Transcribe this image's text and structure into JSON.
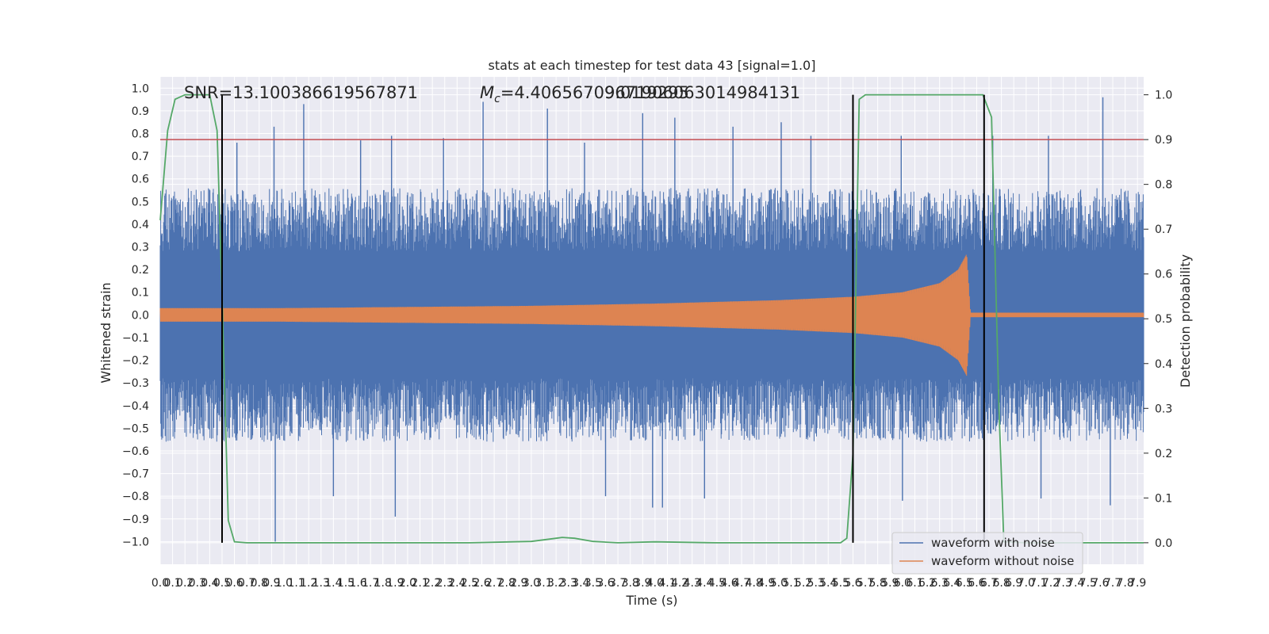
{
  "chart_data": {
    "type": "line",
    "title": "stats at each timestep for test data 43 [signal=1.0]",
    "xlabel": "Time (s)",
    "ylabel": "Whitened strain",
    "y2label": "Detection probability",
    "xlim": [
      0.0,
      7.95
    ],
    "ylim": [
      -1.1,
      1.05
    ],
    "y2lim": [
      -0.048,
      1.04
    ],
    "xticks": [
      0.0,
      0.1,
      0.2,
      0.3,
      0.4,
      0.5,
      0.6,
      0.7,
      0.8,
      0.9,
      1.0,
      1.1,
      1.2,
      1.3,
      1.4,
      1.5,
      1.6,
      1.7,
      1.8,
      1.9,
      2.0,
      2.1,
      2.2,
      2.3,
      2.4,
      2.5,
      2.6,
      2.7,
      2.8,
      2.9,
      3.0,
      3.1,
      3.2,
      3.3,
      3.4,
      3.5,
      3.6,
      3.7,
      3.8,
      3.9,
      4.0,
      4.1,
      4.2,
      4.3,
      4.4,
      4.5,
      4.6,
      4.7,
      4.8,
      4.9,
      5.0,
      5.1,
      5.2,
      5.3,
      5.4,
      5.5,
      5.6,
      5.7,
      5.8,
      5.9,
      6.0,
      6.1,
      6.2,
      6.3,
      6.4,
      6.5,
      6.6,
      6.7,
      6.8,
      6.9,
      7.0,
      7.1,
      7.2,
      7.3,
      7.4,
      7.5,
      7.6,
      7.7,
      7.8,
      7.9
    ],
    "xtick_labels": [
      "0.0",
      "0.1",
      "0.2",
      "0.3",
      "0.4",
      "0.5",
      "0.6",
      "0.7",
      "0.8",
      "0.9",
      "1.0",
      "1.1",
      "1.2",
      "1.3",
      "1.4",
      "1.5",
      "1.6",
      "1.7",
      "1.8",
      "1.9",
      "2.0",
      "2.1",
      "2.2",
      "2.3",
      "2.4",
      "2.5",
      "2.6",
      "2.7",
      "2.8",
      "2.9",
      "3.0",
      "3.1",
      "3.2",
      "3.3",
      "3.4",
      "3.5",
      "3.6",
      "3.7",
      "3.8",
      "3.9",
      "4.0",
      "4.1",
      "4.2",
      "4.3",
      "4.4",
      "4.5",
      "4.6",
      "4.7",
      "4.8",
      "4.9",
      "5.0",
      "5.1",
      "5.2",
      "5.3",
      "5.4",
      "5.5",
      "5.6",
      "5.7",
      "5.8",
      "5.9",
      "6.0",
      "6.1",
      "6.2",
      "6.3",
      "6.4",
      "6.5",
      "6.6",
      "6.7",
      "6.8",
      "6.9",
      "7.0",
      "7.1",
      "7.2",
      "7.3",
      "7.4",
      "7.5",
      "7.6",
      "7.7",
      "7.8",
      "7.9"
    ],
    "yticks": [
      1.0,
      0.9,
      0.8,
      0.7,
      0.6,
      0.5,
      0.4,
      0.3,
      0.2,
      0.1,
      0.0,
      -0.1,
      -0.2,
      -0.3,
      -0.4,
      -0.5,
      -0.6,
      -0.7,
      -0.8,
      -0.9,
      -1.0
    ],
    "ytick_labels": [
      "1.0",
      "0.9",
      "0.8",
      "0.7",
      "0.6",
      "0.5",
      "0.4",
      "0.3",
      "0.2",
      "0.1",
      "0.0",
      "−0.1",
      "−0.2",
      "−0.3",
      "−0.4",
      "−0.5",
      "−0.6",
      "−0.7",
      "−0.8",
      "−0.9",
      "−1.0"
    ],
    "y2ticks": [
      1.0,
      0.9,
      0.8,
      0.7,
      0.6,
      0.5,
      0.4,
      0.3,
      0.2,
      0.1,
      0.0
    ],
    "y2tick_labels": [
      "1.0",
      "0.9",
      "0.8",
      "0.7",
      "0.6",
      "0.5",
      "0.4",
      "0.3",
      "0.2",
      "0.1",
      "0.0"
    ],
    "grid": true,
    "legend_position": "bottom-right",
    "annotations": {
      "snr": "SNR=13.100386619567871",
      "mc_prefix": "M",
      "mc_subscript": "c",
      "mc_value": "=4.406567096719295",
      "third_overlap": "9.01906063014984131"
    },
    "series": [
      {
        "name": "waveform with noise",
        "color": "#4c72b0",
        "axis": "left",
        "envelope_upper": 0.55,
        "envelope_lower": -0.55,
        "spikes": [
          {
            "x": 0.62,
            "y": 0.76
          },
          {
            "x": 0.92,
            "y": 0.83
          },
          {
            "x": 1.16,
            "y": 0.93
          },
          {
            "x": 1.62,
            "y": 0.77
          },
          {
            "x": 1.87,
            "y": 0.79
          },
          {
            "x": 2.29,
            "y": 0.78
          },
          {
            "x": 2.61,
            "y": 0.94
          },
          {
            "x": 3.13,
            "y": 0.91
          },
          {
            "x": 3.43,
            "y": 0.76
          },
          {
            "x": 3.9,
            "y": 0.89
          },
          {
            "x": 4.16,
            "y": 0.87
          },
          {
            "x": 4.63,
            "y": 0.83
          },
          {
            "x": 5.02,
            "y": 0.85
          },
          {
            "x": 5.26,
            "y": 0.79
          },
          {
            "x": 5.99,
            "y": 0.79
          },
          {
            "x": 6.73,
            "y": 0.79
          },
          {
            "x": 7.18,
            "y": 0.79
          },
          {
            "x": 7.62,
            "y": 0.96
          },
          {
            "x": 0.93,
            "y": -1.0
          },
          {
            "x": 1.4,
            "y": -0.8
          },
          {
            "x": 1.9,
            "y": -0.89
          },
          {
            "x": 3.6,
            "y": -0.8
          },
          {
            "x": 3.98,
            "y": -0.85
          },
          {
            "x": 4.06,
            "y": -0.85
          },
          {
            "x": 4.4,
            "y": -0.81
          },
          {
            "x": 6.0,
            "y": -0.82
          },
          {
            "x": 7.12,
            "y": -0.81
          },
          {
            "x": 7.68,
            "y": -0.84
          }
        ]
      },
      {
        "name": "waveform without noise",
        "color": "#dd8452",
        "axis": "left",
        "amplitude": {
          "x": [
            0.0,
            1.0,
            2.0,
            3.0,
            4.0,
            5.0,
            5.6,
            6.0,
            6.3,
            6.45,
            6.52,
            6.55,
            7.95
          ],
          "y": [
            0.03,
            0.03,
            0.035,
            0.04,
            0.05,
            0.065,
            0.08,
            0.1,
            0.14,
            0.2,
            0.27,
            0.01,
            0.01
          ]
        },
        "cycles": 600
      },
      {
        "name": "",
        "color": "#55a868",
        "axis": "right",
        "x": [
          0.0,
          0.06,
          0.12,
          0.2,
          0.3,
          0.4,
          0.46,
          0.5,
          0.55,
          0.6,
          0.7,
          0.9,
          1.5,
          2.5,
          3.0,
          3.2,
          3.25,
          3.35,
          3.5,
          3.7,
          4.0,
          4.5,
          5.0,
          5.5,
          5.55,
          5.6,
          5.65,
          5.7,
          5.75,
          5.8,
          6.0,
          6.5,
          6.65,
          6.72,
          6.78,
          6.82,
          7.0,
          7.5,
          7.95
        ],
        "y": [
          0.72,
          0.92,
          0.99,
          1.0,
          1.0,
          1.0,
          0.92,
          0.55,
          0.05,
          0.002,
          0.0,
          0.0,
          0.0,
          0.0,
          0.003,
          0.01,
          0.012,
          0.01,
          0.003,
          0.0,
          0.002,
          0.0,
          0.0,
          0.0,
          0.01,
          0.2,
          0.99,
          1.0,
          1.0,
          1.0,
          1.0,
          1.0,
          1.0,
          0.95,
          0.3,
          0.002,
          0.0,
          0.0,
          0.0
        ]
      }
    ],
    "threshold": {
      "axis": "right",
      "y": 0.9,
      "color": "#c44e52"
    },
    "vertical_lines": {
      "x": [
        0.5,
        5.6,
        6.66
      ],
      "color": "#000000"
    }
  }
}
